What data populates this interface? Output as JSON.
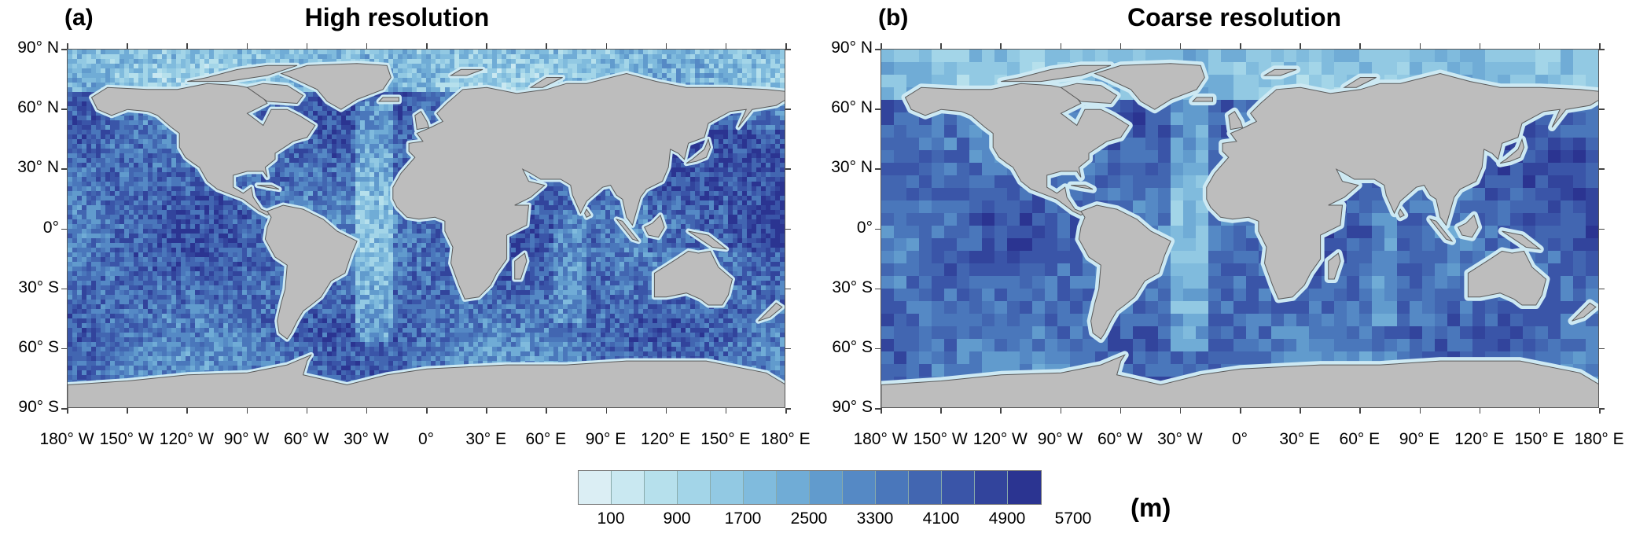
{
  "panels": [
    {
      "letter": "(a)",
      "title": "High resolution"
    },
    {
      "letter": "(b)",
      "title": "Coarse resolution"
    }
  ],
  "lat_labels": [
    "90° N",
    "60° N",
    "30° N",
    "0°",
    "30° S",
    "60° S",
    "90° S"
  ],
  "lon_labels": [
    "180° W",
    "150° W",
    "120° W",
    "90° W",
    "60° W",
    "30° W",
    "0°",
    "30° E",
    "60° E",
    "90° E",
    "120° E",
    "150° E",
    "180° E"
  ],
  "colorbar": {
    "colors": [
      "#dbeef4",
      "#c9e8f1",
      "#b6e0ec",
      "#a3d5e8",
      "#92c9e3",
      "#80bbdd",
      "#70acd6",
      "#619bcd",
      "#5589c5",
      "#4a77bb",
      "#4266b1",
      "#3a55a8",
      "#32449c",
      "#2b3491"
    ],
    "tick_labels": [
      "100",
      "900",
      "1700",
      "2500",
      "3300",
      "4100",
      "4900",
      "5700"
    ],
    "unit": "(m)"
  },
  "map_colors": {
    "land": "#bdbdbd",
    "coast": "#5a5a5a",
    "ocean_deep": "#3c5fb3",
    "ocean_mid": "#5a86c8",
    "ocean_shallow": "#cde9f3"
  }
}
